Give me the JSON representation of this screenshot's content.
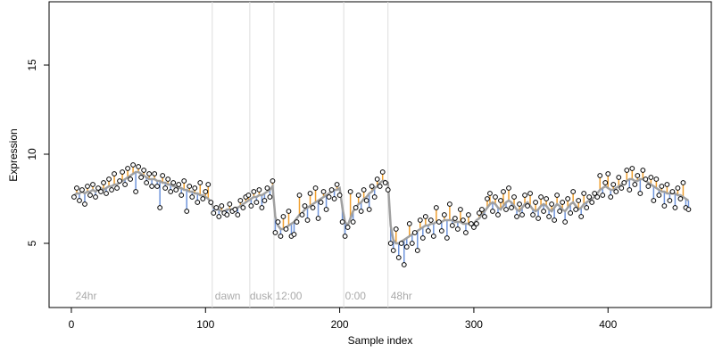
{
  "chart_data": {
    "type": "residual-scatter",
    "xlabel": "Sample index",
    "ylabel": "Expression",
    "xlim": [
      -16.6,
      477
    ],
    "ylim": [
      1.4,
      18.55
    ],
    "xticks": [
      0,
      100,
      200,
      300,
      400
    ],
    "yticks": [
      5,
      10,
      15
    ],
    "grid": false,
    "above_color": "#f0a030",
    "below_color": "#6f95dc",
    "vlines": [
      105,
      133,
      151,
      203,
      236
    ],
    "vline_color": "#dddddd",
    "annotations": [
      {
        "x": 3,
        "y": 2,
        "label": "24hr"
      },
      {
        "x": 107,
        "y": 2,
        "label": "dawn"
      },
      {
        "x": 133,
        "y": 2,
        "label": "dusk"
      },
      {
        "x": 152,
        "y": 2,
        "label": "12:00"
      },
      {
        "x": 204,
        "y": 2,
        "label": "0:00"
      },
      {
        "x": 238,
        "y": 2,
        "label": "48hr"
      }
    ],
    "x": [
      2,
      4,
      6,
      8,
      10,
      12,
      14,
      16,
      18,
      20,
      22,
      24,
      26,
      28,
      30,
      32,
      34,
      36,
      38,
      40,
      42,
      44,
      46,
      48,
      50,
      52,
      54,
      56,
      58,
      60,
      62,
      64,
      66,
      68,
      70,
      72,
      74,
      76,
      78,
      80,
      82,
      84,
      86,
      88,
      90,
      92,
      94,
      96,
      98,
      100,
      102,
      104,
      106,
      108,
      110,
      112,
      114,
      116,
      118,
      120,
      122,
      124,
      126,
      128,
      130,
      132,
      134,
      136,
      138,
      140,
      142,
      144,
      146,
      148,
      150,
      152,
      154,
      156,
      158,
      160,
      162,
      164,
      166,
      168,
      170,
      172,
      174,
      176,
      178,
      180,
      182,
      184,
      186,
      188,
      190,
      192,
      194,
      196,
      198,
      200,
      202,
      204,
      206,
      208,
      210,
      212,
      214,
      216,
      218,
      220,
      222,
      224,
      226,
      228,
      230,
      232,
      234,
      236,
      238,
      240,
      242,
      244,
      246,
      248,
      250,
      252,
      254,
      256,
      258,
      260,
      262,
      264,
      266,
      268,
      270,
      272,
      274,
      276,
      278,
      280,
      282,
      284,
      286,
      288,
      290,
      292,
      294,
      296,
      298,
      300,
      302,
      304,
      306,
      308,
      310,
      312,
      314,
      316,
      318,
      320,
      322,
      324,
      326,
      328,
      330,
      332,
      334,
      336,
      338,
      340,
      342,
      344,
      346,
      348,
      350,
      352,
      354,
      356,
      358,
      360,
      362,
      364,
      366,
      368,
      370,
      372,
      374,
      376,
      378,
      380,
      382,
      384,
      386,
      388,
      390,
      392,
      394,
      396,
      398,
      400,
      402,
      404,
      406,
      408,
      410,
      412,
      414,
      416,
      418,
      420,
      422,
      424,
      426,
      428,
      430,
      432,
      434,
      436,
      438,
      440,
      442,
      444,
      446,
      448,
      450,
      452,
      454,
      456,
      458,
      460
    ],
    "series": [
      {
        "color": "#000000",
        "fill": "#ffffff",
        "values": [
          7.6,
          8.1,
          7.4,
          8.0,
          7.2,
          8.2,
          7.7,
          8.3,
          7.6,
          8.1,
          7.9,
          8.4,
          7.8,
          8.6,
          8.0,
          8.9,
          8.1,
          8.5,
          9.0,
          8.3,
          9.2,
          8.6,
          9.4,
          7.9,
          9.3,
          8.7,
          9.1,
          8.4,
          8.9,
          8.2,
          8.9,
          8.2,
          7.0,
          8.8,
          8.1,
          8.6,
          7.9,
          8.4,
          8.0,
          8.3,
          7.7,
          8.5,
          6.8,
          8.2,
          7.6,
          8.1,
          7.3,
          8.4,
          7.5,
          7.9,
          8.3,
          7.3,
          6.7,
          7.0,
          6.5,
          7.1,
          6.7,
          6.6,
          7.2,
          6.8,
          6.9,
          6.6,
          7.4,
          7.0,
          7.6,
          7.7,
          7.1,
          7.9,
          7.3,
          8.0,
          7.0,
          7.4,
          8.1,
          7.6,
          8.5,
          5.6,
          6.2,
          5.4,
          6.5,
          5.8,
          6.8,
          5.4,
          5.5,
          6.2,
          7.7,
          6.6,
          7.1,
          6.3,
          7.8,
          7.0,
          8.1,
          6.4,
          7.3,
          7.9,
          6.9,
          7.6,
          8.0,
          7.5,
          8.3,
          7.7,
          6.2,
          5.4,
          5.9,
          7.9,
          6.2,
          7.0,
          7.7,
          6.8,
          8.0,
          7.4,
          6.9,
          8.2,
          7.6,
          8.6,
          8.2,
          9.0,
          8.4,
          8.0,
          5.0,
          4.6,
          5.8,
          4.2,
          5.0,
          3.8,
          4.8,
          6.1,
          5.0,
          5.6,
          4.6,
          6.3,
          5.3,
          6.5,
          5.7,
          6.3,
          5.4,
          7.0,
          6.2,
          5.7,
          6.6,
          5.3,
          7.2,
          6.0,
          6.4,
          5.8,
          6.9,
          6.3,
          5.6,
          6.6,
          6.1,
          5.9,
          6.1,
          6.7,
          6.9,
          6.5,
          7.5,
          7.8,
          6.8,
          7.6,
          6.6,
          7.4,
          7.9,
          6.9,
          8.1,
          7.0,
          7.6,
          6.5,
          7.2,
          6.6,
          7.7,
          7.1,
          7.8,
          6.6,
          7.3,
          6.4,
          7.6,
          6.8,
          7.5,
          6.5,
          7.2,
          6.3,
          7.7,
          6.8,
          7.3,
          6.2,
          7.5,
          6.7,
          7.9,
          6.9,
          7.4,
          6.5,
          7.8,
          7.0,
          7.6,
          7.3,
          7.8,
          7.6,
          8.8,
          7.7,
          8.4,
          8.9,
          7.6,
          8.3,
          7.9,
          8.7,
          8.1,
          8.4,
          9.1,
          8.0,
          9.2,
          8.3,
          8.8,
          7.8,
          9.1,
          8.6,
          8.2,
          8.7,
          7.4,
          8.6,
          7.7,
          8.2,
          7.1,
          8.3,
          7.4,
          7.9,
          7.0,
          8.1,
          7.5,
          8.4,
          7.0,
          6.9
        ]
      },
      {
        "color": "#a0a0a0",
        "values": [
          7.7,
          7.8,
          7.8,
          7.9,
          7.8,
          7.9,
          7.9,
          8.0,
          7.9,
          8.0,
          8.1,
          8.0,
          8.1,
          8.2,
          8.2,
          8.3,
          8.3,
          8.4,
          8.5,
          8.6,
          8.7,
          8.8,
          8.9,
          9.0,
          9.0,
          8.9,
          8.8,
          8.7,
          8.6,
          8.6,
          8.6,
          8.5,
          8.5,
          8.4,
          8.4,
          8.3,
          8.3,
          8.2,
          8.2,
          8.1,
          8.1,
          8.0,
          8.0,
          7.9,
          7.9,
          7.8,
          7.8,
          7.7,
          7.7,
          7.6,
          7.5,
          7.3,
          7.0,
          6.9,
          6.9,
          6.8,
          6.8,
          6.9,
          6.9,
          6.9,
          7.0,
          7.0,
          7.1,
          7.2,
          7.3,
          7.4,
          7.5,
          7.6,
          7.6,
          7.7,
          7.7,
          7.8,
          7.9,
          8.0,
          8.2,
          6.5,
          6.0,
          5.8,
          5.8,
          5.9,
          6.0,
          6.1,
          6.2,
          6.4,
          6.6,
          6.7,
          6.9,
          7.0,
          7.1,
          7.2,
          7.3,
          7.4,
          7.5,
          7.6,
          7.7,
          7.8,
          7.9,
          8.0,
          8.0,
          8.1,
          7.0,
          6.2,
          6.0,
          6.4,
          6.8,
          7.0,
          7.2,
          7.3,
          7.5,
          7.6,
          7.8,
          7.9,
          8.1,
          8.2,
          8.4,
          8.5,
          8.5,
          8.4,
          6.0,
          5.2,
          5.0,
          5.0,
          5.1,
          5.2,
          5.3,
          5.4,
          5.5,
          5.6,
          5.7,
          5.8,
          5.9,
          6.0,
          6.0,
          6.1,
          6.1,
          6.2,
          6.2,
          6.2,
          6.3,
          6.3,
          6.3,
          6.3,
          6.2,
          6.2,
          6.2,
          6.1,
          6.1,
          6.1,
          6.1,
          6.1,
          6.3,
          6.4,
          6.6,
          6.8,
          7.0,
          7.2,
          7.3,
          7.2,
          7.0,
          6.9,
          7.1,
          7.3,
          7.4,
          7.3,
          7.1,
          6.9,
          6.8,
          7.0,
          7.2,
          7.3,
          7.1,
          6.9,
          6.8,
          6.9,
          7.1,
          7.2,
          7.1,
          6.9,
          6.8,
          7.0,
          7.2,
          7.1,
          6.9,
          6.8,
          7.0,
          7.2,
          7.3,
          7.1,
          6.9,
          7.0,
          7.2,
          7.3,
          7.4,
          7.5,
          7.6,
          7.8,
          8.0,
          8.1,
          8.2,
          8.1,
          8.0,
          8.0,
          8.1,
          8.2,
          8.3,
          8.4,
          8.5,
          8.6,
          8.6,
          8.5,
          8.5,
          8.6,
          8.6,
          8.5,
          8.4,
          8.3,
          8.2,
          8.1,
          8.0,
          7.9,
          7.9,
          7.8,
          7.8,
          7.8,
          7.8,
          7.7,
          7.7,
          7.6,
          7.5,
          7.4
        ]
      }
    ]
  }
}
